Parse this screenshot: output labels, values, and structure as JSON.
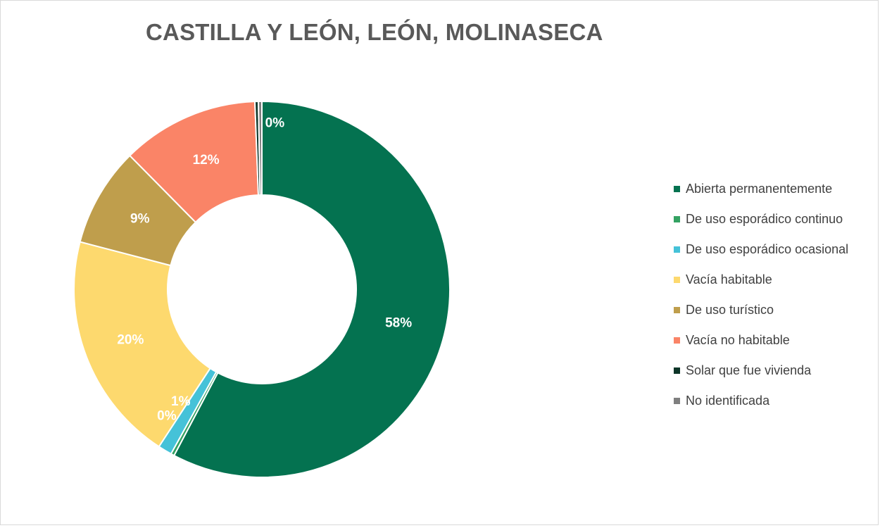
{
  "chart_data": {
    "type": "pie",
    "variant": "doughnut",
    "title": "CASTILLA Y LEÓN, LEÓN, MOLINASECA",
    "legend_position": "right",
    "slices": [
      {
        "name": "Abierta permanentemente",
        "value": 58.2,
        "label": "58%",
        "color": "#047250"
      },
      {
        "name": "De uso esporádico continuo",
        "value": 0.3,
        "label": "0%",
        "color": "#34a262"
      },
      {
        "name": "De uso esporádico ocasional",
        "value": 1.2,
        "label": "1%",
        "color": "#45c2d8"
      },
      {
        "name": "Vacía habitable",
        "value": 20.0,
        "label": "20%",
        "color": "#fdd96e"
      },
      {
        "name": "De uso turístico",
        "value": 8.6,
        "label": "9%",
        "color": "#bf9e4c"
      },
      {
        "name": "Vacía no habitable",
        "value": 11.9,
        "label": "12%",
        "color": "#fa8467"
      },
      {
        "name": "Solar que fue vivienda",
        "value": 0.3,
        "label": "0%",
        "color": "#0d3528"
      },
      {
        "name": "No identificada",
        "value": 0.3,
        "label": "0%",
        "color": "#7f7f7f"
      }
    ]
  }
}
